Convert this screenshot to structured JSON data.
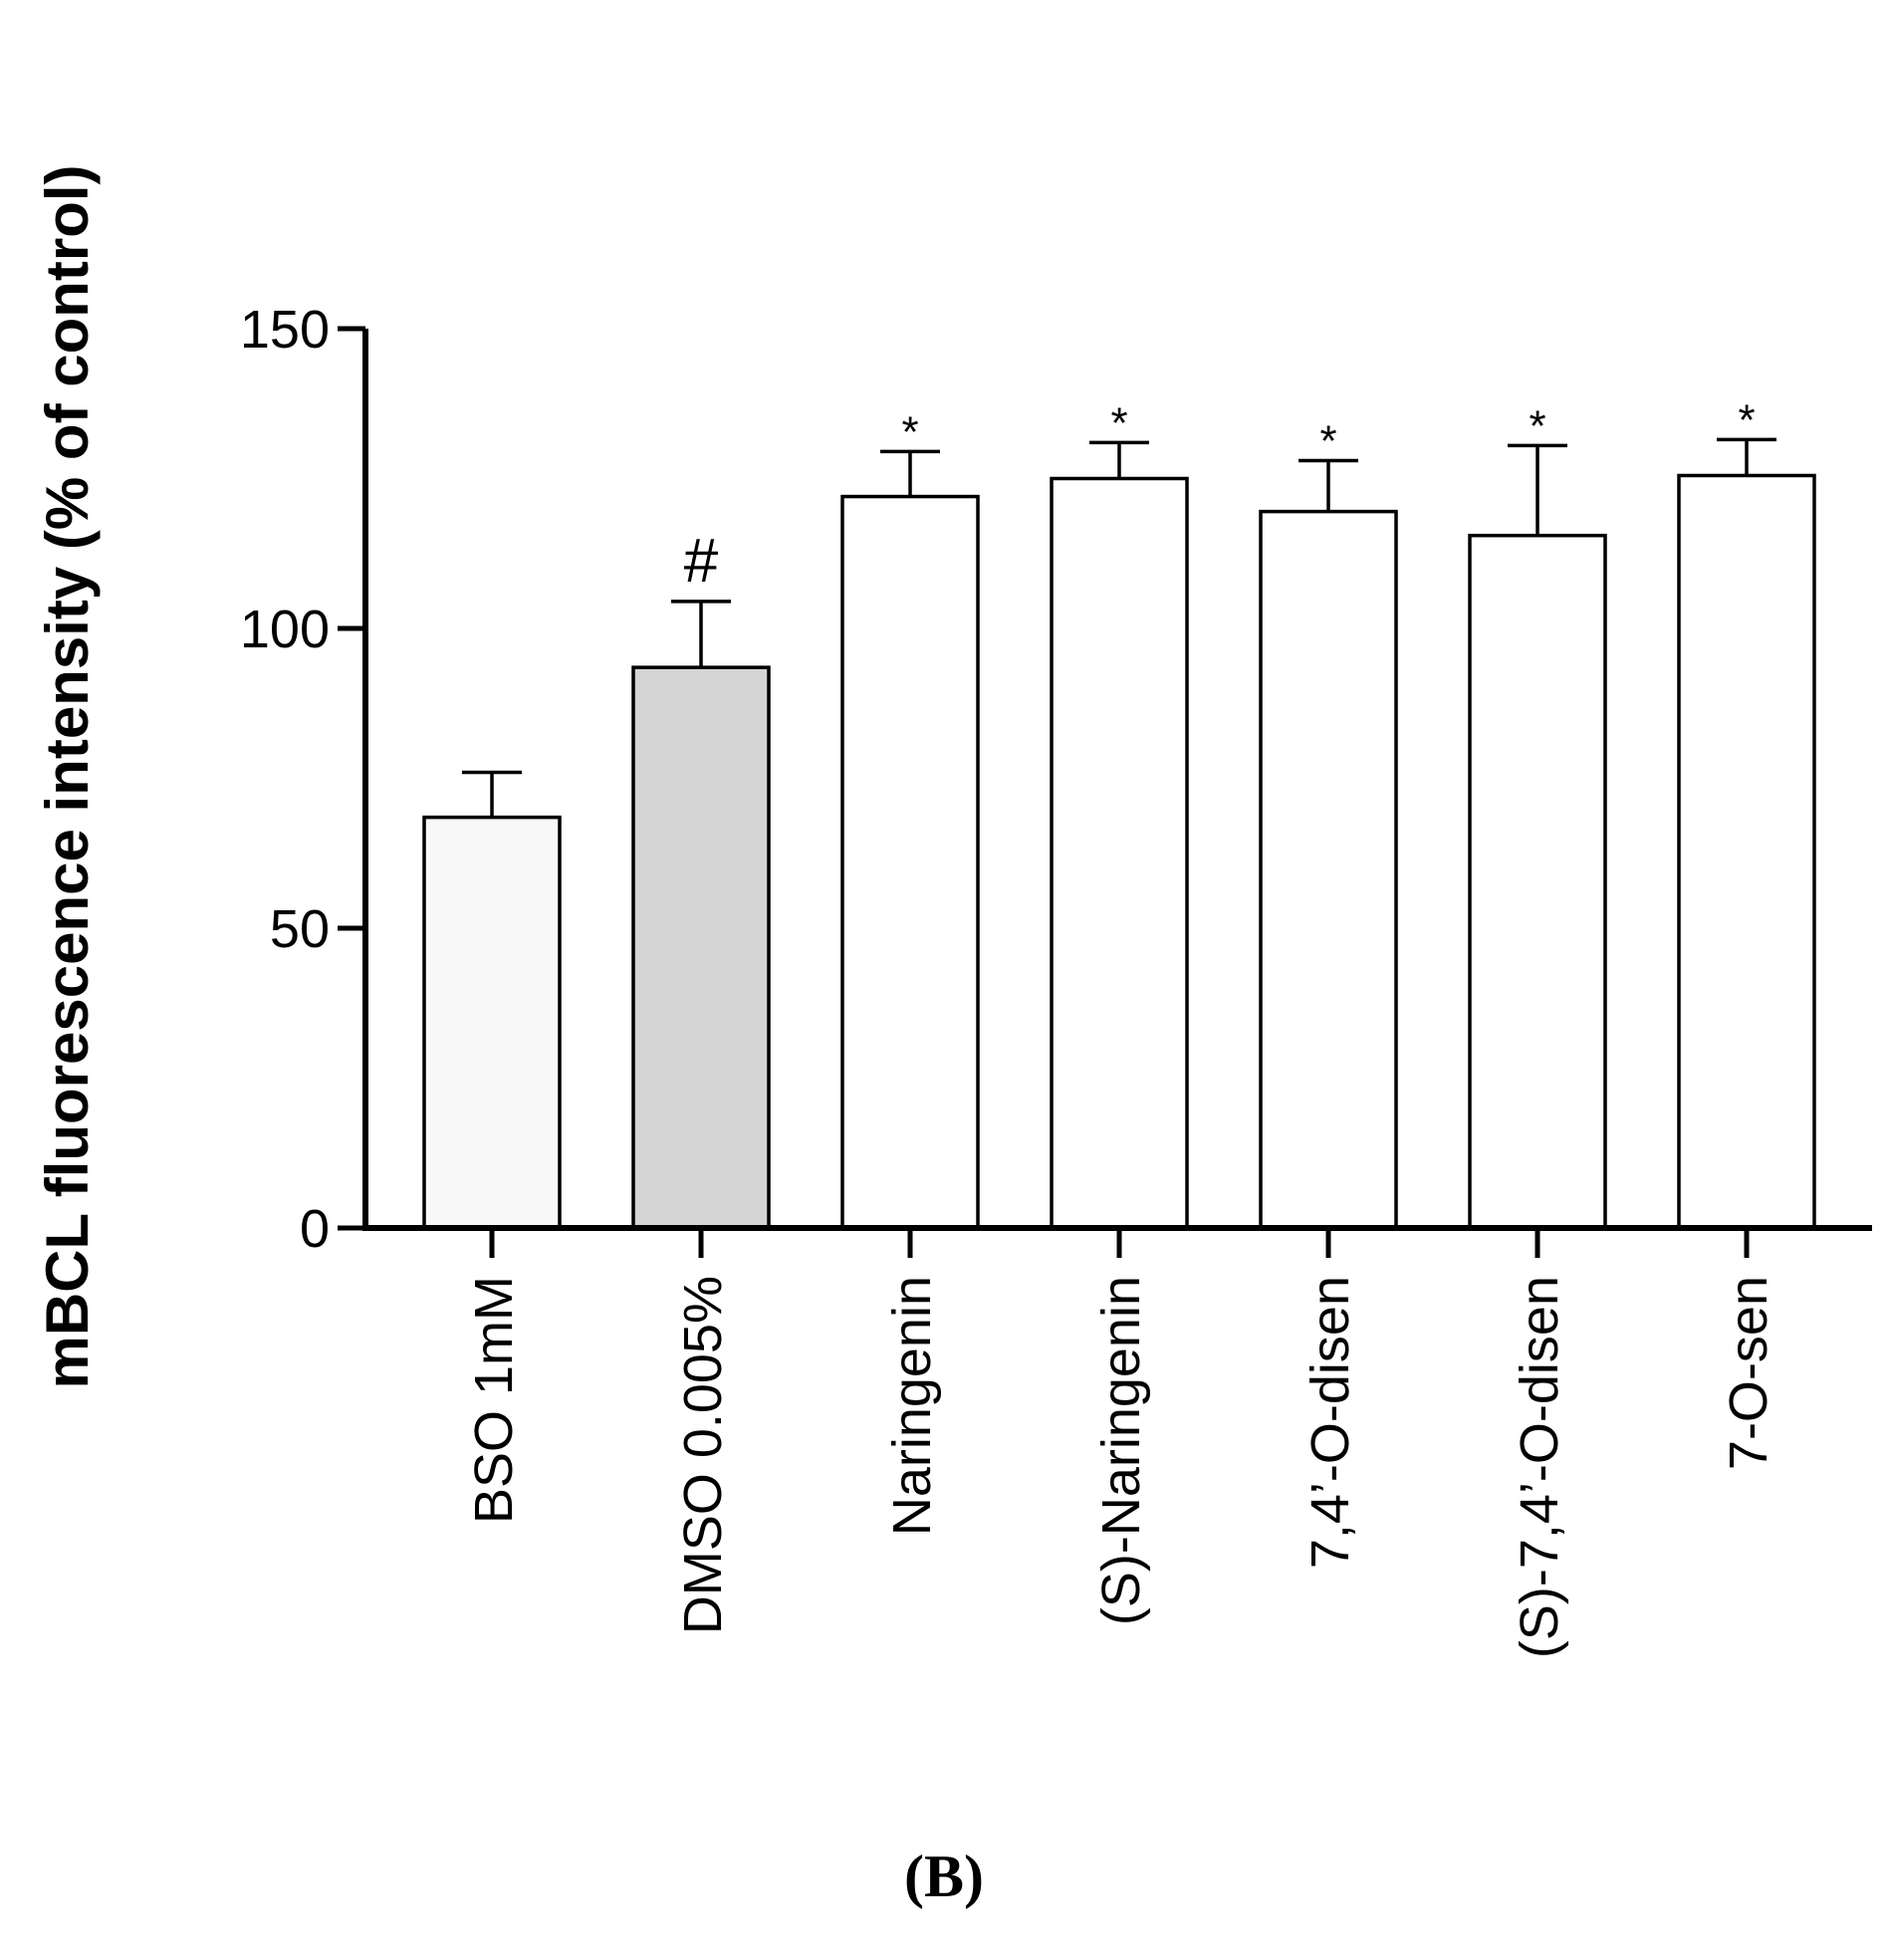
{
  "panel_label": "(B)",
  "chart_data": {
    "type": "bar",
    "title": "",
    "xlabel": "",
    "ylabel": "mBCL fluorescence intensity (% of control)",
    "ylim": [
      0,
      150
    ],
    "yticks": [
      0,
      50,
      100,
      150
    ],
    "grid": false,
    "categories": [
      "BSO 1mM",
      "DMSO 0.005%",
      "Naringenin",
      "(S)-Naringenin",
      "7,4’-O-disen",
      "(S)-7,4’-O-disen",
      "7-O-sen"
    ],
    "values": [
      68.5,
      93.5,
      122,
      125,
      119.5,
      115.5,
      125.5
    ],
    "errors": [
      7.5,
      11,
      7.5,
      6,
      8.5,
      15,
      6
    ],
    "annotations": [
      "",
      "#",
      "*",
      "*",
      "*",
      "*",
      "*"
    ],
    "colors": [
      "#f8f8f8",
      "#d4d4d4",
      "#ffffff",
      "#ffffff",
      "#ffffff",
      "#ffffff",
      "#ffffff"
    ]
  }
}
